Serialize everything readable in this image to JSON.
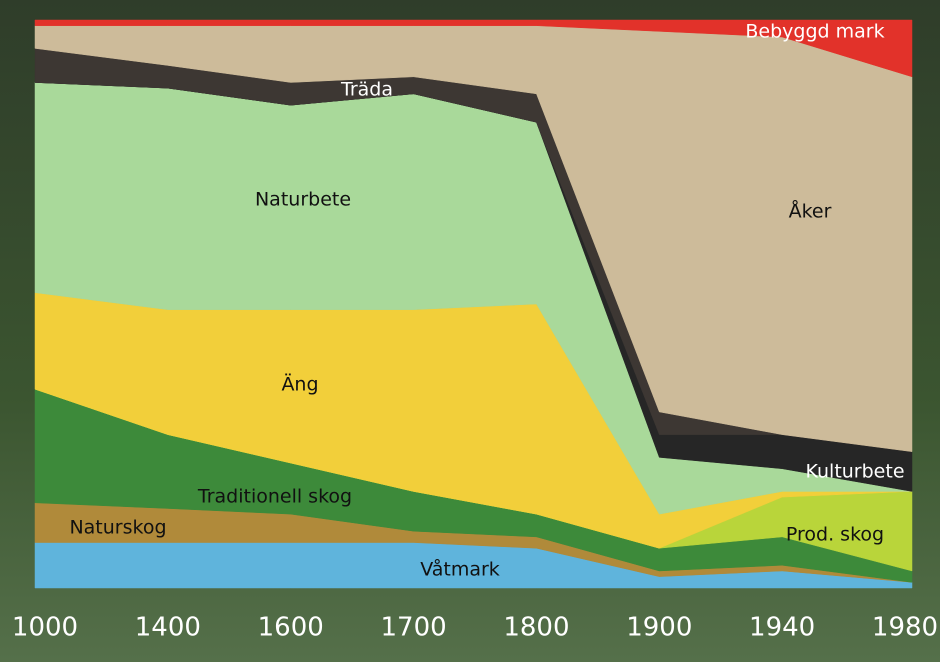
{
  "chart_data": {
    "type": "stacked-area",
    "categories": [
      "1000",
      "1400",
      "1600",
      "1700",
      "1800",
      "1900",
      "1940",
      "1980"
    ],
    "ylim": [
      0,
      100
    ],
    "series": [
      {
        "name": "Våtmark",
        "color": "#5fb4dc",
        "values": [
          8,
          8,
          8,
          8,
          7,
          2,
          3,
          1
        ]
      },
      {
        "name": "Naturskog",
        "color": "#b08a3a",
        "values": [
          7,
          6,
          5,
          2,
          2,
          1,
          1,
          0
        ]
      },
      {
        "name": "Traditionell skog",
        "color": "#3d8a3a",
        "values": [
          20,
          13,
          9,
          7,
          4,
          4,
          5,
          2
        ]
      },
      {
        "name": "Prod. skog",
        "color": "#b9d53a",
        "values": [
          0,
          0,
          0,
          0,
          0,
          0,
          7,
          14
        ]
      },
      {
        "name": "Äng",
        "color": "#f2cf3a",
        "values": [
          17,
          22,
          27,
          32,
          37,
          6,
          1,
          0
        ]
      },
      {
        "name": "Naturbete",
        "color": "#a9d99a",
        "values": [
          37,
          39,
          36,
          38,
          32,
          10,
          4,
          0
        ]
      },
      {
        "name": "Kulturbete",
        "color": "#262626",
        "values": [
          0,
          0,
          0,
          0,
          0,
          4,
          6,
          7
        ]
      },
      {
        "name": "Träda",
        "color": "#3d3733",
        "values": [
          6,
          4,
          4,
          3,
          5,
          4,
          0,
          0
        ]
      },
      {
        "name": "Åker",
        "color": "#cdbb9a",
        "values": [
          4,
          7,
          10,
          9,
          12,
          67,
          70,
          66
        ]
      },
      {
        "name": "Bebyggd mark",
        "color": "#e2322a",
        "values": [
          1,
          1,
          1,
          1,
          1,
          2,
          3,
          10
        ]
      }
    ]
  }
}
